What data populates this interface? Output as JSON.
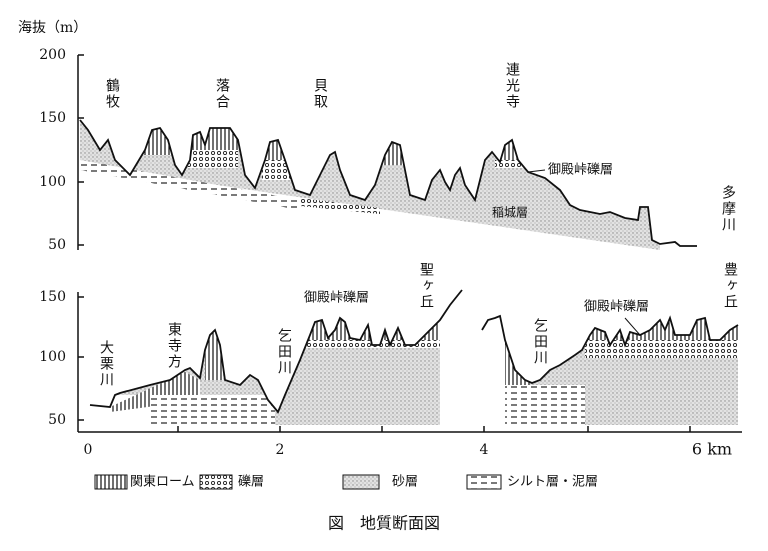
{
  "axis_label": "海抜（m）",
  "top_panel": {
    "y_ticks": [
      "200",
      "150",
      "100",
      "50"
    ],
    "labels": [
      "鶴牧",
      "落合",
      "貝取",
      "連光寺",
      "御殿峠礫層",
      "稲城層",
      "多摩川"
    ]
  },
  "bottom_panel": {
    "y_ticks": [
      "150",
      "100",
      "50"
    ],
    "labels": [
      "大栗川",
      "東寺方",
      "乞田川",
      "御殿峠礫層",
      "聖ヶ丘",
      "乞田川",
      "御殿峠礫層",
      "豊ヶ丘"
    ]
  },
  "x_ticks": [
    "0",
    "2",
    "4",
    "6 km"
  ],
  "legend": [
    "関東ローム",
    "礫層",
    "砂層",
    "シルト層・泥層"
  ],
  "caption": "図　地質断面図"
}
